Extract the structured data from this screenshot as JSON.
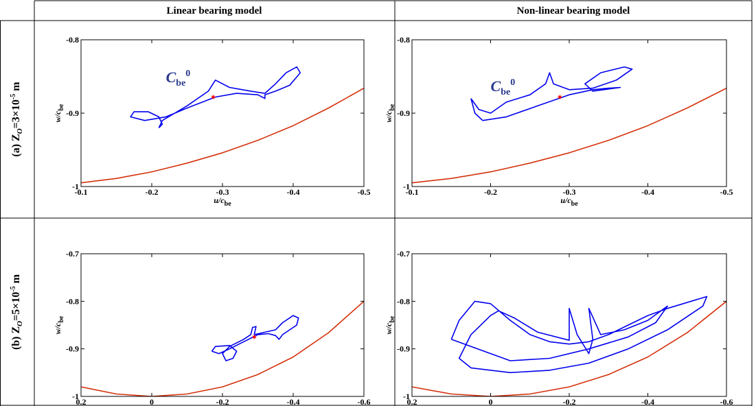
{
  "header": {
    "columns": [
      "Linear bearing model",
      "Non-linear bearing model"
    ]
  },
  "row_labels": [
    [
      "(a) Z",
      "O",
      "=3×10",
      "-5",
      " m"
    ],
    [
      "(b) Z",
      "O",
      "=5×10",
      "-5",
      " m"
    ]
  ],
  "chart_data": [
    {
      "type": "line",
      "xlabel": "u/c",
      "xlabel_sub": "be",
      "ylabel": "w/c",
      "ylabel_sub": "be",
      "annotation": [
        "C",
        "be",
        "0"
      ],
      "annotation_at": [
        -0.22,
        -0.858
      ],
      "annotation_color": "#2b3a8c",
      "xlim": [
        -0.1,
        -0.5
      ],
      "xticks": [
        -0.1,
        -0.2,
        -0.3,
        -0.4,
        -0.5
      ],
      "ylim": [
        -1,
        -0.8
      ],
      "yticks": [
        -1,
        -0.9,
        -0.8
      ],
      "series": [
        {
          "color": "#0000ee",
          "x": [
            -0.21,
            -0.215,
            -0.25,
            -0.28,
            -0.29,
            -0.31,
            -0.34,
            -0.36,
            -0.375,
            -0.39,
            -0.405,
            -0.41,
            -0.395,
            -0.375,
            -0.36,
            -0.36,
            -0.35,
            -0.32,
            -0.29,
            -0.25,
            -0.22,
            -0.19,
            -0.17,
            -0.175,
            -0.195,
            -0.21,
            -0.215,
            -0.21
          ],
          "values": [
            -0.92,
            -0.91,
            -0.89,
            -0.87,
            -0.855,
            -0.865,
            -0.87,
            -0.873,
            -0.86,
            -0.845,
            -0.837,
            -0.845,
            -0.862,
            -0.87,
            -0.875,
            -0.88,
            -0.875,
            -0.873,
            -0.878,
            -0.893,
            -0.905,
            -0.91,
            -0.905,
            -0.898,
            -0.898,
            -0.905,
            -0.915,
            -0.92
          ]
        },
        {
          "color": "#d4300a",
          "x": [
            -0.1,
            -0.15,
            -0.2,
            -0.25,
            -0.3,
            -0.35,
            -0.4,
            -0.45,
            -0.5
          ],
          "values": [
            -0.995,
            -0.989,
            -0.98,
            -0.968,
            -0.954,
            -0.937,
            -0.917,
            -0.893,
            -0.866
          ]
        }
      ],
      "marker": {
        "x": -0.287,
        "y": -0.878,
        "color": "#ff0000"
      }
    },
    {
      "type": "line",
      "xlabel": "u/c",
      "xlabel_sub": "be",
      "ylabel": "w/c",
      "ylabel_sub": "be",
      "annotation": [
        "C",
        "be",
        "0"
      ],
      "annotation_at": [
        -0.2,
        -0.87
      ],
      "annotation_color": "#2b3a8c",
      "xlim": [
        -0.1,
        -0.5
      ],
      "xticks": [
        -0.1,
        -0.2,
        -0.3,
        -0.4,
        -0.5
      ],
      "ylim": [
        -1,
        -0.8
      ],
      "yticks": [
        -1,
        -0.9,
        -0.8
      ],
      "series": [
        {
          "color": "#0000ee",
          "x": [
            -0.175,
            -0.18,
            -0.19,
            -0.22,
            -0.26,
            -0.3,
            -0.33,
            -0.35,
            -0.365,
            -0.33,
            -0.32,
            -0.34,
            -0.37,
            -0.38,
            -0.36,
            -0.33,
            -0.3,
            -0.28,
            -0.275,
            -0.27,
            -0.25,
            -0.22,
            -0.2,
            -0.185,
            -0.175
          ],
          "values": [
            -0.88,
            -0.9,
            -0.91,
            -0.905,
            -0.89,
            -0.875,
            -0.868,
            -0.866,
            -0.865,
            -0.87,
            -0.86,
            -0.845,
            -0.837,
            -0.84,
            -0.855,
            -0.866,
            -0.868,
            -0.86,
            -0.845,
            -0.86,
            -0.875,
            -0.885,
            -0.9,
            -0.895,
            -0.88
          ]
        },
        {
          "color": "#d4300a",
          "x": [
            -0.1,
            -0.15,
            -0.2,
            -0.25,
            -0.3,
            -0.35,
            -0.4,
            -0.45,
            -0.5
          ],
          "values": [
            -0.995,
            -0.989,
            -0.98,
            -0.968,
            -0.954,
            -0.937,
            -0.917,
            -0.893,
            -0.866
          ]
        }
      ],
      "marker": {
        "x": -0.288,
        "y": -0.878,
        "color": "#ff0000"
      }
    },
    {
      "type": "line",
      "xlabel": "u/c",
      "xlabel_sub": "be",
      "ylabel": "w/c",
      "ylabel_sub": "be",
      "xlim": [
        0.2,
        -0.6
      ],
      "xticks": [
        0.2,
        0,
        -0.2,
        -0.4,
        -0.6
      ],
      "ylim": [
        -1,
        -0.7
      ],
      "yticks": [
        -1,
        -0.9,
        -0.8,
        -0.7
      ],
      "series": [
        {
          "color": "#0000ee",
          "x": [
            -0.17,
            -0.18,
            -0.22,
            -0.24,
            -0.23,
            -0.21,
            -0.2,
            -0.22,
            -0.26,
            -0.28,
            -0.285,
            -0.295,
            -0.29,
            -0.32,
            -0.35,
            -0.37,
            -0.4,
            -0.415,
            -0.41,
            -0.37,
            -0.36,
            -0.35,
            -0.33,
            -0.3,
            -0.26,
            -0.22,
            -0.19,
            -0.17
          ],
          "values": [
            -0.905,
            -0.895,
            -0.893,
            -0.905,
            -0.92,
            -0.925,
            -0.91,
            -0.895,
            -0.88,
            -0.87,
            -0.855,
            -0.853,
            -0.87,
            -0.865,
            -0.86,
            -0.845,
            -0.83,
            -0.835,
            -0.85,
            -0.87,
            -0.88,
            -0.872,
            -0.868,
            -0.87,
            -0.885,
            -0.9,
            -0.91,
            -0.905
          ]
        },
        {
          "color": "#d4300a",
          "x": [
            0.2,
            0.1,
            0,
            -0.1,
            -0.2,
            -0.3,
            -0.4,
            -0.5,
            -0.6
          ],
          "values": [
            -0.98,
            -0.995,
            -1,
            -0.995,
            -0.98,
            -0.954,
            -0.917,
            -0.866,
            -0.8
          ]
        }
      ],
      "marker": {
        "x": -0.29,
        "y": -0.875,
        "color": "#ff0000"
      }
    },
    {
      "type": "line",
      "xlabel": "u/c",
      "xlabel_sub": "be",
      "ylabel": "w/c",
      "ylabel_sub": "be",
      "xlim": [
        0.2,
        -0.6
      ],
      "xticks": [
        0.2,
        0,
        -0.2,
        -0.4,
        -0.6
      ],
      "ylim": [
        -1,
        -0.7
      ],
      "yticks": [
        -1,
        -0.9,
        -0.8,
        -0.7
      ],
      "series": [
        {
          "color": "#0000ee",
          "x": [
            0.1,
            0.08,
            0.04,
            0,
            -0.05,
            -0.1,
            -0.15,
            -0.2,
            -0.25,
            -0.3,
            -0.35,
            -0.4,
            -0.45,
            -0.55,
            -0.54,
            -0.45,
            -0.35,
            -0.25,
            -0.15,
            -0.05,
            0.05,
            0.08,
            0.05,
            0,
            -0.02,
            -0.06,
            -0.12,
            -0.2,
            -0.2,
            -0.22,
            -0.25,
            -0.26,
            -0.25,
            -0.28,
            -0.34,
            -0.4,
            -0.45,
            -0.42,
            -0.35,
            -0.25,
            -0.15,
            -0.05,
            0.1
          ],
          "values": [
            -0.88,
            -0.84,
            -0.8,
            -0.805,
            -0.84,
            -0.87,
            -0.885,
            -0.89,
            -0.885,
            -0.87,
            -0.85,
            -0.83,
            -0.815,
            -0.79,
            -0.81,
            -0.86,
            -0.9,
            -0.93,
            -0.945,
            -0.95,
            -0.94,
            -0.92,
            -0.87,
            -0.83,
            -0.82,
            -0.835,
            -0.865,
            -0.882,
            -0.815,
            -0.87,
            -0.91,
            -0.88,
            -0.815,
            -0.87,
            -0.86,
            -0.84,
            -0.81,
            -0.845,
            -0.875,
            -0.9,
            -0.92,
            -0.925,
            -0.88
          ]
        },
        {
          "color": "#d4300a",
          "x": [
            0.2,
            0.1,
            0,
            -0.1,
            -0.2,
            -0.3,
            -0.4,
            -0.5,
            -0.6
          ],
          "values": [
            -0.98,
            -0.995,
            -1,
            -0.995,
            -0.98,
            -0.954,
            -0.917,
            -0.866,
            -0.8
          ]
        }
      ]
    }
  ]
}
